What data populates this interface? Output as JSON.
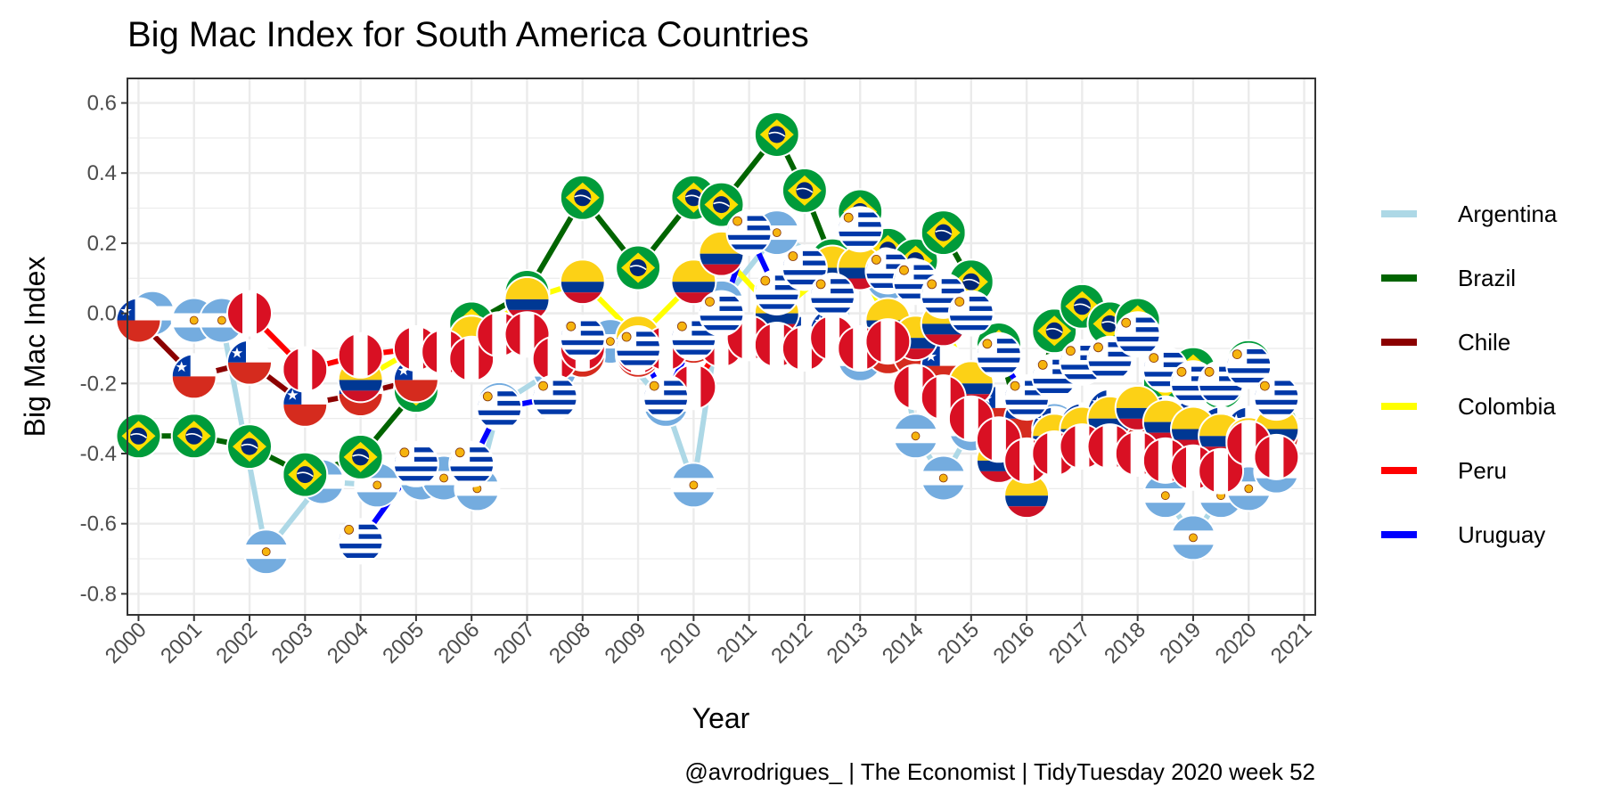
{
  "chart_data": {
    "type": "line",
    "title": "Big Mac Index for South America Countries",
    "xlabel": "Year",
    "ylabel": "Big Mac Index",
    "caption": "@avrodrigues_ | The Economist | TidyTuesday 2020 week 52",
    "x_ticks": [
      "2000",
      "2001",
      "2002",
      "2003",
      "2004",
      "2005",
      "2006",
      "2007",
      "2008",
      "2009",
      "2010",
      "2011",
      "2012",
      "2013",
      "2014",
      "2015",
      "2016",
      "2017",
      "2018",
      "2019",
      "2020",
      "2021"
    ],
    "y_ticks": [
      "-0.8",
      "-0.6",
      "-0.4",
      "-0.2",
      "0.0",
      "0.2",
      "0.4",
      "0.6"
    ],
    "xlim": [
      1999.8,
      2021.2
    ],
    "ylim": [
      -0.86,
      0.67
    ],
    "grid": true,
    "legend_position": "right",
    "series": [
      {
        "name": "Argentina",
        "color": "#add8e6",
        "marker_icon": "argentina-flag",
        "x": [
          2000.25,
          2001.0,
          2001.5,
          2002.3,
          2003.3,
          2004.3,
          2005.1,
          2005.5,
          2006.1,
          2006.5,
          2007.5,
          2008.5,
          2009.5,
          2010.0,
          2010.5,
          2011.5,
          2012.5,
          2013.0,
          2013.5,
          2014.0,
          2014.5,
          2015.0,
          2015.5,
          2016.0,
          2016.5,
          2017.0,
          2017.5,
          2018.0,
          2018.5,
          2019.0,
          2019.5,
          2020.0,
          2020.5
        ],
        "y": [
          0.0,
          -0.02,
          -0.02,
          -0.68,
          -0.48,
          -0.49,
          -0.47,
          -0.47,
          -0.5,
          -0.26,
          -0.16,
          -0.08,
          -0.26,
          -0.49,
          0.03,
          0.23,
          0.13,
          -0.13,
          0.1,
          -0.35,
          -0.47,
          -0.33,
          -0.37,
          -0.48,
          -0.32,
          -0.36,
          -0.35,
          -0.35,
          -0.52,
          -0.64,
          -0.52,
          -0.5,
          -0.45
        ]
      },
      {
        "name": "Brazil",
        "color": "#006400",
        "marker_icon": "brazil-flag",
        "x": [
          2000.0,
          2001.0,
          2002.0,
          2003.0,
          2004.0,
          2005.0,
          2006.0,
          2007.0,
          2008.0,
          2009.0,
          2010.0,
          2010.5,
          2011.5,
          2012.0,
          2012.5,
          2013.0,
          2013.5,
          2014.0,
          2014.5,
          2015.0,
          2015.5,
          2016.0,
          2016.5,
          2017.0,
          2017.5,
          2018.0,
          2018.5,
          2019.0,
          2019.5,
          2020.0,
          2020.5
        ],
        "y": [
          -0.35,
          -0.35,
          -0.38,
          -0.46,
          -0.41,
          -0.22,
          -0.03,
          0.06,
          0.33,
          0.13,
          0.33,
          0.31,
          0.51,
          0.35,
          0.15,
          0.29,
          0.18,
          0.15,
          0.23,
          0.09,
          -0.09,
          -0.38,
          -0.05,
          0.02,
          -0.03,
          -0.02,
          -0.2,
          -0.16,
          -0.21,
          -0.14,
          -0.32
        ]
      },
      {
        "name": "Chile",
        "color": "#8b0000",
        "marker_icon": "chile-flag",
        "x": [
          2000.0,
          2001.0,
          2002.0,
          2003.0,
          2004.0,
          2005.0,
          2006.0,
          2007.0,
          2008.0,
          2009.0,
          2010.0,
          2010.5,
          2011.0,
          2011.5,
          2012.0,
          2012.5,
          2013.0,
          2013.5,
          2014.0,
          2014.5,
          2015.0,
          2015.5,
          2016.0,
          2016.5,
          2017.0,
          2017.5,
          2018.0,
          2018.5,
          2019.0,
          2019.5,
          2020.0,
          2020.5
        ],
        "y": [
          -0.02,
          -0.18,
          -0.14,
          -0.26,
          -0.23,
          -0.19,
          -0.07,
          -0.06,
          -0.12,
          -0.12,
          -0.08,
          -0.09,
          -0.07,
          0.0,
          -0.07,
          -0.05,
          -0.1,
          -0.11,
          -0.12,
          -0.15,
          -0.2,
          -0.27,
          -0.3,
          -0.33,
          -0.32,
          -0.28,
          -0.3,
          -0.3,
          -0.31,
          -0.33,
          -0.33,
          -0.35
        ]
      },
      {
        "name": "Colombia",
        "color": "#ffff00",
        "marker_icon": "colombia-flag",
        "x": [
          2004.0,
          2005.0,
          2006.0,
          2007.0,
          2008.0,
          2009.0,
          2010.0,
          2010.5,
          2011.5,
          2012.5,
          2013.0,
          2013.5,
          2014.0,
          2014.5,
          2015.0,
          2015.5,
          2016.0,
          2016.5,
          2017.0,
          2017.5,
          2018.0,
          2018.5,
          2019.0,
          2019.5,
          2020.0,
          2020.5
        ],
        "y": [
          -0.19,
          -0.1,
          -0.07,
          0.04,
          0.09,
          -0.07,
          0.09,
          0.17,
          0.0,
          0.13,
          0.13,
          -0.02,
          -0.07,
          -0.03,
          -0.2,
          -0.42,
          -0.52,
          -0.35,
          -0.33,
          -0.3,
          -0.27,
          -0.31,
          -0.33,
          -0.35,
          -0.36,
          -0.33
        ]
      },
      {
        "name": "Peru",
        "color": "#ff0000",
        "marker_icon": "peru-flag",
        "x": [
          2002.0,
          2003.0,
          2004.0,
          2005.0,
          2005.5,
          2006.0,
          2006.5,
          2007.0,
          2007.5,
          2008.0,
          2009.0,
          2009.5,
          2010.0,
          2010.5,
          2011.0,
          2011.5,
          2012.0,
          2012.5,
          2013.0,
          2013.5,
          2014.0,
          2014.5,
          2015.0,
          2015.5,
          2016.0,
          2016.5,
          2017.0,
          2017.5,
          2018.0,
          2018.5,
          2019.0,
          2019.5,
          2020.0,
          2020.5
        ],
        "y": [
          0.0,
          -0.16,
          -0.12,
          -0.1,
          -0.11,
          -0.13,
          -0.06,
          -0.06,
          -0.13,
          -0.1,
          -0.11,
          -0.1,
          -0.21,
          -0.09,
          -0.07,
          -0.09,
          -0.1,
          -0.07,
          -0.1,
          -0.08,
          -0.21,
          -0.24,
          -0.3,
          -0.36,
          -0.42,
          -0.4,
          -0.38,
          -0.38,
          -0.4,
          -0.42,
          -0.44,
          -0.45,
          -0.37,
          -0.41
        ]
      },
      {
        "name": "Uruguay",
        "color": "#0000ff",
        "marker_icon": "uruguay-flag",
        "x": [
          2004.0,
          2005.0,
          2006.0,
          2006.5,
          2007.5,
          2008.0,
          2009.0,
          2009.5,
          2010.0,
          2010.5,
          2011.0,
          2011.5,
          2012.0,
          2012.5,
          2013.0,
          2013.5,
          2014.0,
          2014.5,
          2015.0,
          2015.5,
          2016.0,
          2016.5,
          2017.0,
          2017.5,
          2018.0,
          2018.5,
          2019.0,
          2019.5,
          2020.0,
          2020.5
        ],
        "y": [
          -0.65,
          -0.43,
          -0.43,
          -0.27,
          -0.24,
          -0.07,
          -0.1,
          -0.24,
          -0.07,
          0.0,
          0.23,
          0.06,
          0.13,
          0.05,
          0.24,
          0.12,
          0.09,
          0.05,
          0.0,
          -0.12,
          -0.24,
          -0.18,
          -0.14,
          -0.13,
          -0.06,
          -0.16,
          -0.2,
          -0.2,
          -0.15,
          -0.24
        ]
      }
    ]
  }
}
